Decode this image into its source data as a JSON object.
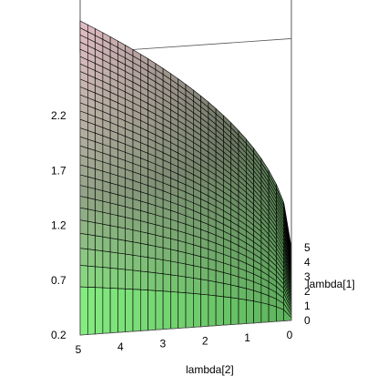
{
  "chart_data": {
    "type": "surface3d",
    "title": "",
    "x_label": "lambda[2]",
    "y_label": "lambda[1]",
    "z_label": "",
    "x_ticks": [
      "5",
      "4",
      "3",
      "2",
      "1",
      "0"
    ],
    "y_ticks": [
      "0",
      "1",
      "2",
      "3",
      "4",
      "5"
    ],
    "z_ticks": [
      "0.2",
      "0.7",
      "1.2",
      "1.7",
      "2.2"
    ],
    "x_range": [
      0,
      5
    ],
    "y_range": [
      0,
      5
    ],
    "z_range": [
      0.2,
      2.4
    ],
    "grid_lines": 28,
    "colors": {
      "surface_low": "#7cf27a",
      "surface_mid": "#8fa083",
      "surface_high": "#f0c8d0",
      "edge": "#000000",
      "box": "#555555"
    }
  }
}
